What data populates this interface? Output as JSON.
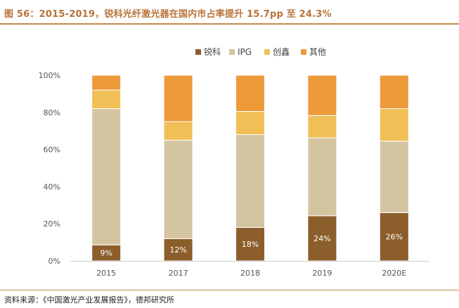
{
  "header": {
    "title": "图 56：2015-2019，锐科光纤激光器在国内市占率提升 15.7pp 至 24.3%"
  },
  "footer": {
    "source": "资料来源：《中国激光产业发展报告》，德邦研究所"
  },
  "chart_data": {
    "type": "bar",
    "stacked": true,
    "categories": [
      "2015",
      "2017",
      "2018",
      "2019",
      "2020E"
    ],
    "ylim": [
      0,
      100
    ],
    "yticks": [
      0,
      20,
      40,
      60,
      80,
      100
    ],
    "ytick_labels": [
      "0%",
      "20%",
      "40%",
      "60%",
      "80%",
      "100%"
    ],
    "legend_position": "top-center",
    "series": [
      {
        "name": "锐科",
        "color": "#8b5e2b",
        "values": [
          8.6,
          12,
          18,
          24.3,
          26
        ],
        "data_labels": [
          "9%",
          "12%",
          "18%",
          "24%",
          "26%"
        ]
      },
      {
        "name": "IPG",
        "color": "#d4c4a0",
        "values": [
          73.4,
          53,
          50,
          42,
          38.5
        ]
      },
      {
        "name": "创鑫",
        "color": "#f0bf55",
        "values": [
          10,
          10,
          12.5,
          12,
          17.5
        ]
      },
      {
        "name": "其他",
        "color": "#ec9a3a",
        "values": [
          8,
          25,
          19.5,
          21.7,
          18
        ]
      }
    ]
  }
}
